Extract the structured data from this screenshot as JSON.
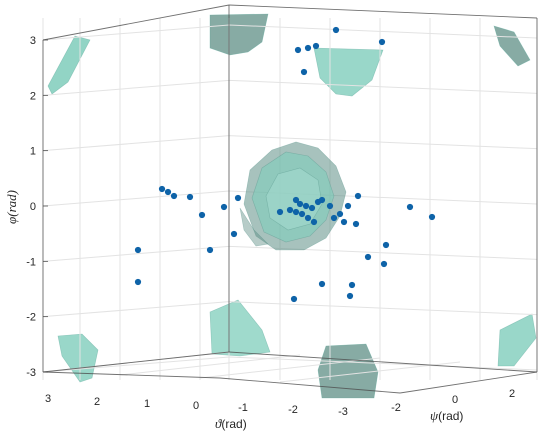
{
  "chart_data": {
    "type": "scatter",
    "plot_kind": "3d-scatter-with-isosurfaces",
    "axes": {
      "x": {
        "symbol": "ϑ",
        "unit": "(rad)",
        "ticks": [
          "3",
          "2",
          "1",
          "0",
          "-1",
          "-2",
          "-3"
        ],
        "ticks_values": [
          3,
          2,
          1,
          0,
          -1,
          -2,
          -3
        ],
        "range": [
          -3.14,
          3.14
        ]
      },
      "y": {
        "symbol": "ψ",
        "unit": "(rad)",
        "ticks": [
          "-2",
          "0",
          "2"
        ],
        "ticks_values": [
          -2,
          0,
          2
        ],
        "range": [
          -3.14,
          3.14
        ]
      },
      "z": {
        "symbol": "φ",
        "unit": "(rad)",
        "ticks": [
          "3",
          "2",
          "1",
          "0",
          "-1",
          "-2",
          "-3"
        ],
        "ticks_values": [
          3,
          2,
          1,
          0,
          -1,
          -2,
          -3
        ],
        "range": [
          -3.14,
          3.14
        ]
      }
    },
    "grid": true,
    "box": true,
    "colors": {
      "points": "#0e63a8",
      "surface": "#7fcdbb",
      "surface_dark": "#5f8f86",
      "grid": "#e3e3e3",
      "box": "#4d4d4d"
    },
    "points_phi_approx": [
      3.1,
      2.95,
      2.85,
      2.85,
      2.8,
      2.45,
      0.3,
      0.28,
      0.22,
      0.2,
      0.18,
      0.15,
      0.1,
      0.08,
      0.05,
      0.05,
      0.03,
      0.02,
      0.0,
      0.0,
      -0.02,
      -0.05,
      -0.05,
      -0.08,
      -0.1,
      -0.12,
      -0.15,
      -0.18,
      -0.2,
      -0.2,
      -0.25,
      -0.3,
      -0.5,
      -0.72,
      -0.78,
      -0.8,
      -0.95,
      -1.05,
      -1.38,
      -1.4,
      -1.42,
      -1.6,
      -1.68
    ]
  }
}
